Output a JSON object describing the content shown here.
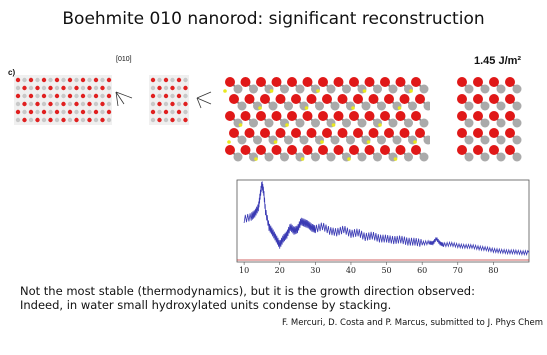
{
  "slide": {
    "title": "Boehmite 010 nanorod:  significant reconstruction",
    "panel_label": "c)",
    "direction_label": "[010]",
    "surface_energy": "1.45 J/m²",
    "caption_line1": "Not the most stable (thermodynamics), but it is the growth direction observed:",
    "caption_line2": "Indeed, in water small hydroxylated units condense by stacking.",
    "reference": "F. Mercuri, D. Costa and P. Marcus, submitted to J. Phys Chem"
  },
  "chart_data": {
    "type": "line",
    "x_ticks": [
      10,
      20,
      30,
      40,
      50,
      60,
      70,
      80
    ],
    "xlim": [
      8,
      90
    ],
    "series": [
      {
        "color": "#3a3ab4",
        "x": [
          10,
          12,
          13,
          14,
          14.5,
          15,
          15.5,
          16,
          17,
          18,
          19,
          20,
          21,
          22,
          23,
          24,
          25,
          26,
          27,
          28,
          29,
          30,
          32,
          34,
          36,
          38,
          40,
          42,
          44,
          46,
          48,
          50,
          52,
          54,
          56,
          58,
          60,
          62,
          63,
          64,
          65,
          66,
          68,
          70,
          72,
          74,
          76,
          78,
          80,
          82,
          84,
          86,
          88,
          90
        ],
        "y": [
          0.55,
          0.58,
          0.62,
          0.7,
          0.85,
          1.0,
          0.9,
          0.65,
          0.45,
          0.38,
          0.3,
          0.22,
          0.3,
          0.35,
          0.45,
          0.4,
          0.42,
          0.52,
          0.5,
          0.48,
          0.44,
          0.42,
          0.46,
          0.4,
          0.38,
          0.42,
          0.36,
          0.38,
          0.32,
          0.34,
          0.3,
          0.3,
          0.28,
          0.29,
          0.26,
          0.26,
          0.24,
          0.25,
          0.24,
          0.3,
          0.24,
          0.22,
          0.23,
          0.21,
          0.2,
          0.2,
          0.18,
          0.17,
          0.15,
          0.14,
          0.13,
          0.13,
          0.12,
          0.12
        ]
      }
    ],
    "baseline_color": "#c03030",
    "grid": false
  }
}
